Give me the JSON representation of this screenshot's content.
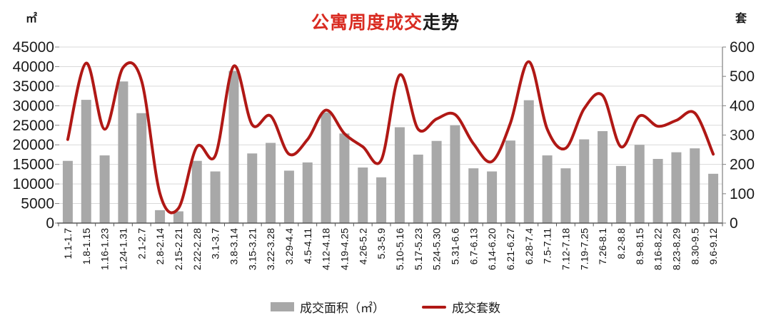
{
  "title": {
    "highlight": "公寓周度成交",
    "rest": "走势"
  },
  "left_axis": {
    "unit": "㎡",
    "max": 45000,
    "step": 5000,
    "ticks": [
      45000,
      40000,
      35000,
      30000,
      25000,
      20000,
      15000,
      10000,
      5000,
      0
    ]
  },
  "right_axis": {
    "unit": "套",
    "max": 600,
    "step": 100,
    "ticks": [
      600,
      500,
      400,
      300,
      200,
      100,
      0
    ]
  },
  "legend": {
    "area_label": "成交面积（㎡）",
    "count_label": "成交套数"
  },
  "colors": {
    "bar": "#a8a8a8",
    "line": "#b01815",
    "title_red": "#d92b21",
    "grid": "#d9d9d9",
    "axis": "#595959",
    "tick": "#808080",
    "text": "#1a1a1a"
  },
  "chart_data": {
    "type": "combo",
    "title": "公寓周度成交走势",
    "xlabel": "",
    "left_ylabel": "㎡",
    "right_ylabel": "套",
    "left_ylim": [
      0,
      45000
    ],
    "right_ylim": [
      0,
      600
    ],
    "grid": true,
    "legend_position": "bottom",
    "categories": [
      "1.1-1.7",
      "1.8-1.15",
      "1.16-1.23",
      "1.24-1.31",
      "2.1-2.7",
      "2.8-2.14",
      "2.15-2.21",
      "2.22-2.28",
      "3.1-3.7",
      "3.8-3.14",
      "3.15-3.21",
      "3.22-3.28",
      "3.29-4.4",
      "4.5-4.11",
      "4.12-4.18",
      "4.19-4.25",
      "4.26-5.2",
      "5.3-5.9",
      "5.10-5.16",
      "5.17-5.23",
      "5.24-5.30",
      "5.31-6.6",
      "6.7-6.13",
      "6.14-6.20",
      "6.21-6.27",
      "6.28-7.4",
      "7.5-7.11",
      "7.12-7.18",
      "7.19-7.25",
      "7.26-8.1",
      "8.2-8.8",
      "8.9-8.15",
      "8.16-8.22",
      "8.23-8.29",
      "8.30-9.5",
      "9.6-9.12"
    ],
    "series": [
      {
        "name": "成交面积（㎡）",
        "type": "bar",
        "axis": "left",
        "values": [
          15900,
          31500,
          17300,
          36200,
          28100,
          3300,
          3000,
          15900,
          13200,
          38900,
          17800,
          20500,
          13400,
          15500,
          28300,
          22900,
          14200,
          11700,
          24500,
          17500,
          21000,
          25000,
          14000,
          13200,
          21100,
          31400,
          17300,
          14000,
          21400,
          23500,
          14600,
          20000,
          16400,
          18100,
          19100,
          12600
        ]
      },
      {
        "name": "成交套数",
        "type": "line",
        "axis": "right",
        "values": [
          285,
          545,
          320,
          530,
          485,
          100,
          50,
          260,
          230,
          535,
          335,
          365,
          235,
          285,
          385,
          305,
          260,
          215,
          505,
          320,
          355,
          370,
          270,
          210,
          340,
          550,
          320,
          255,
          390,
          435,
          260,
          365,
          330,
          350,
          375,
          235
        ]
      }
    ]
  }
}
